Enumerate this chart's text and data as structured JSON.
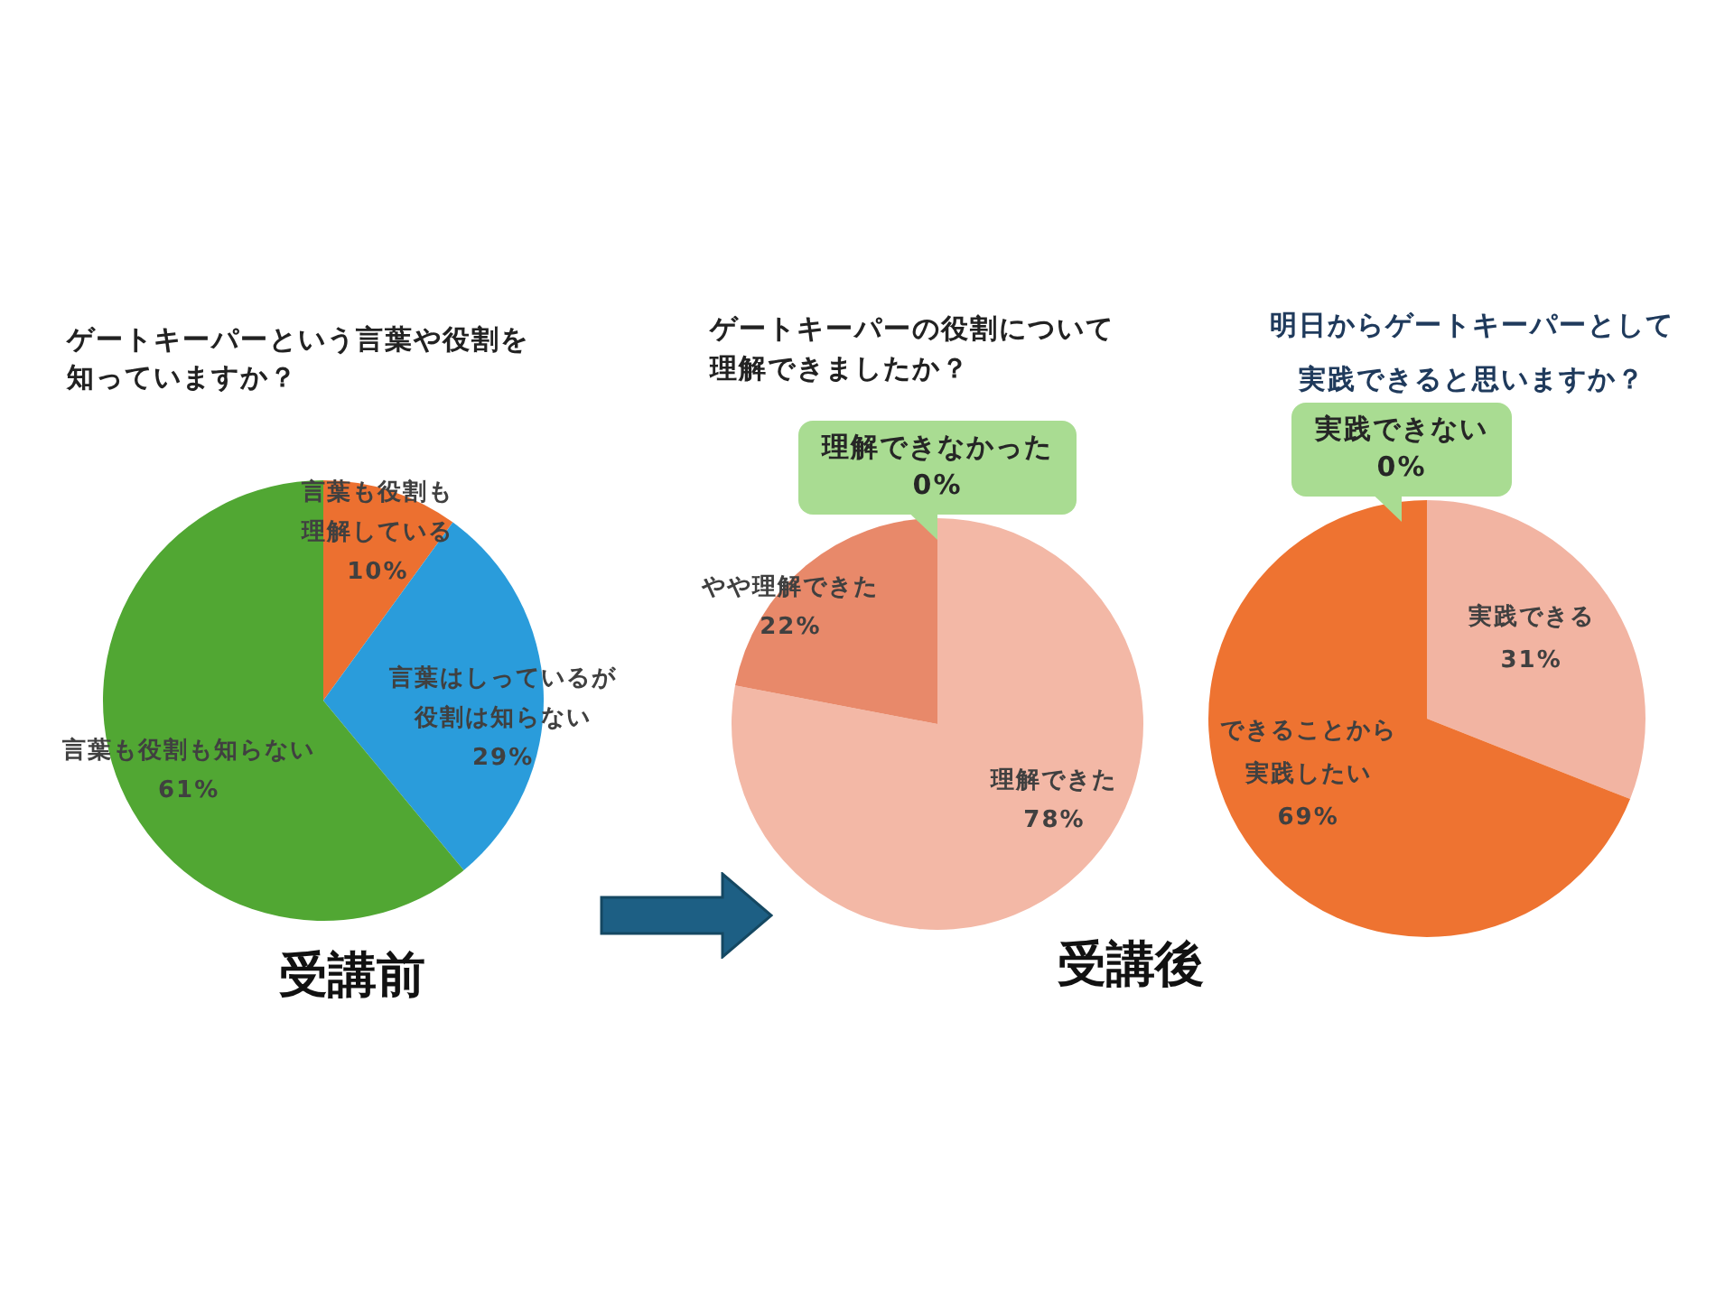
{
  "chart_data": [
    {
      "type": "pie",
      "title": "ゲートキーパーという言葉や役割を知っていますか？",
      "categories": [
        "言葉も役割も理解している",
        "言葉はしっているが役割は知らない",
        "言葉も役割も知らない"
      ],
      "values": [
        10,
        29,
        61
      ],
      "colors": [
        "#ec7030",
        "#2a9cdb",
        "#51a733"
      ],
      "value_labels": [
        "10%",
        "29%",
        "61%"
      ],
      "annotations": [
        "受講前"
      ]
    },
    {
      "type": "pie",
      "title": "ゲートキーパーの役割について理解できましたか？",
      "categories": [
        "理解できた",
        "やや理解できた",
        "理解できなかった"
      ],
      "values": [
        78,
        22,
        0
      ],
      "colors": [
        "#f3b8a6",
        "#e8896a",
        "#a9dc92"
      ],
      "value_labels": [
        "78%",
        "22%",
        "0%"
      ],
      "annotations": [
        "受講後"
      ]
    },
    {
      "type": "pie",
      "title": "明日からゲートキーパーとして実践できると思いますか？",
      "categories": [
        "実践できる",
        "できることから実践したい",
        "実践できない"
      ],
      "values": [
        31,
        69,
        0
      ],
      "colors": [
        "#f2b4a2",
        "#ee7331",
        "#a9dc92"
      ],
      "value_labels": [
        "31%",
        "69%",
        "0%"
      ]
    }
  ]
}
